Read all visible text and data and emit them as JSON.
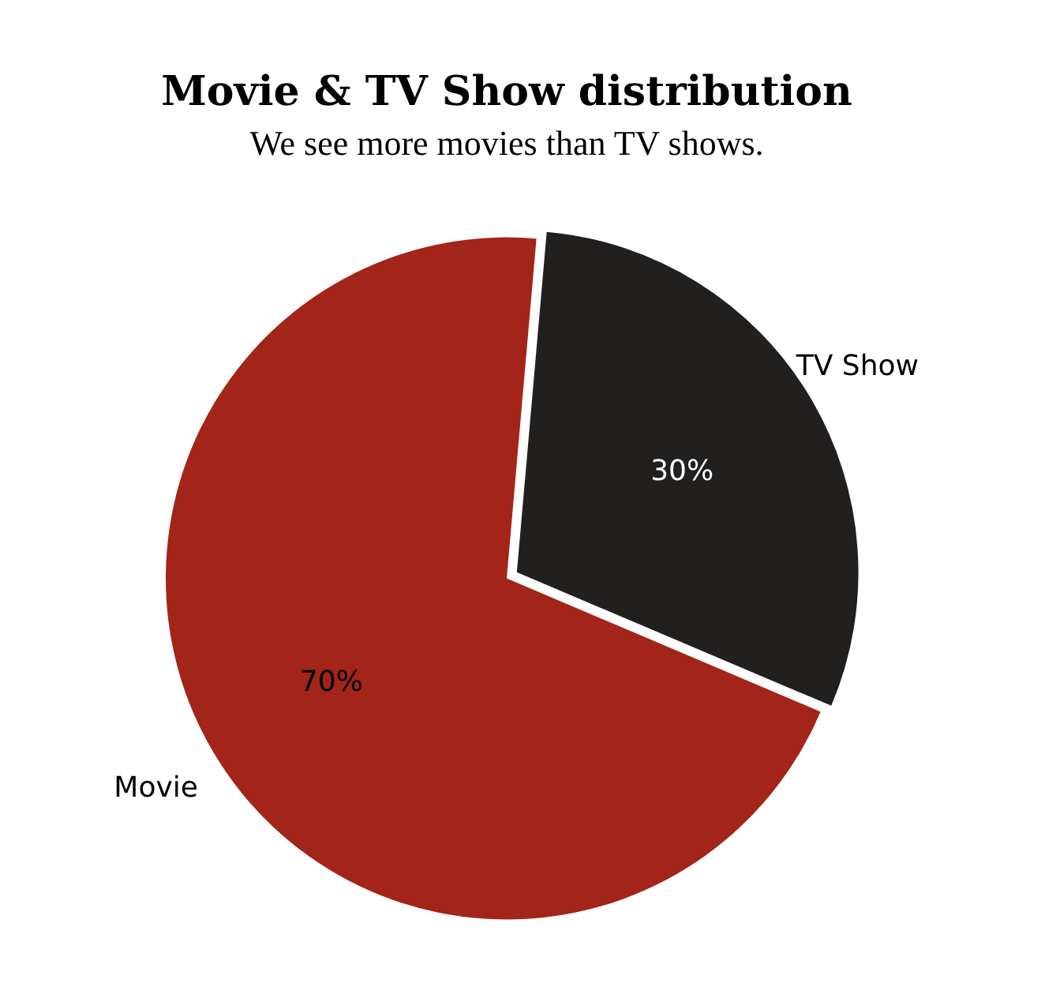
{
  "chart_data": {
    "type": "pie",
    "title": "Movie & TV Show distribution",
    "subtitle": "We see more movies than TV shows.",
    "categories": [
      "Movie",
      "TV Show"
    ],
    "values": [
      70,
      30
    ],
    "colors": [
      "#a32418",
      "#221f1f"
    ],
    "value_labels": [
      "70%",
      "30%"
    ],
    "legend": false
  }
}
